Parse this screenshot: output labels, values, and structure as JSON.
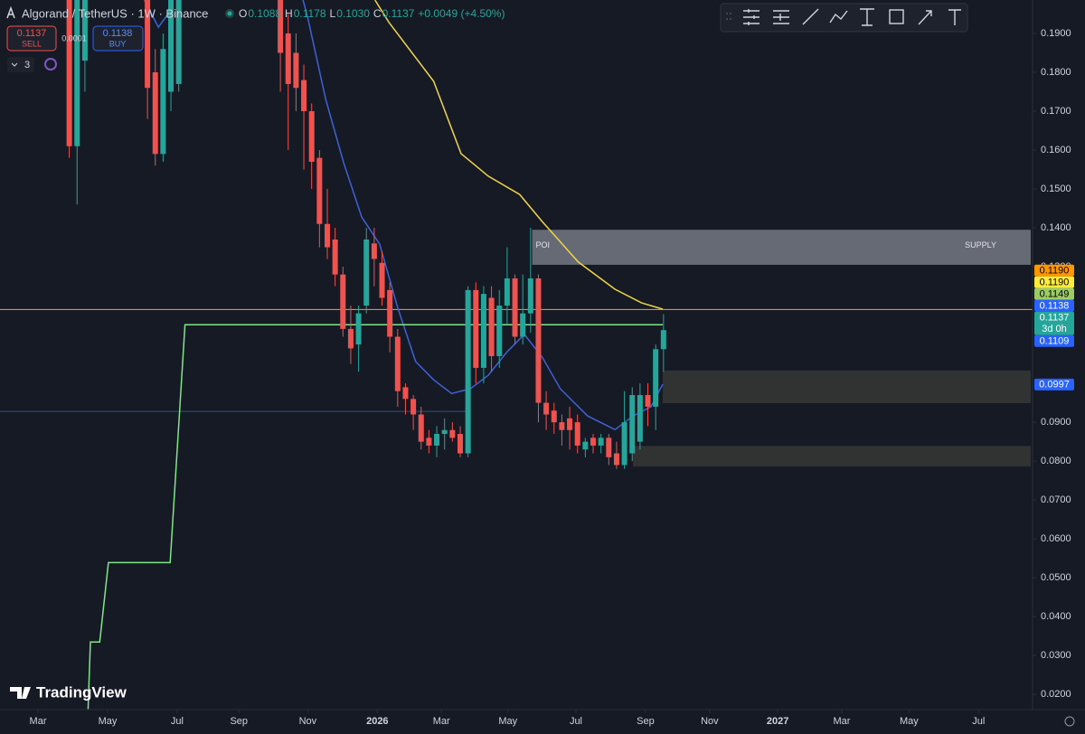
{
  "header": {
    "symbol": "Algorand / TetherUS · 1W · Binance",
    "ohlc": [
      {
        "key": "O",
        "value": "0.1088"
      },
      {
        "key": "H",
        "value": "0.1178"
      },
      {
        "key": "L",
        "value": "0.1030"
      },
      {
        "key": "C",
        "value": "0.1137"
      }
    ],
    "change": "+0.0049 (+4.50%)",
    "sell_price": "0.1137",
    "sell": "SELL",
    "spread": "0.0001",
    "buy_price": "0.1138",
    "buy": "BUY",
    "indicators": "3",
    "watermark": "TradingView"
  },
  "chart_data": {
    "type": "candlestick",
    "xlim": [
      -4.86,
      127.2
    ],
    "ylim": [
      0.0161,
      0.1986
    ],
    "xticks": [
      {
        "value": 0,
        "label": "Mar"
      },
      {
        "value": 8.9,
        "label": "May"
      },
      {
        "value": 17.8,
        "label": "Jul"
      },
      {
        "value": 25.7,
        "label": "Sep"
      },
      {
        "value": 34.5,
        "label": "Nov"
      },
      {
        "value": 43.4,
        "label": "2026"
      },
      {
        "value": 51.6,
        "label": "Mar"
      },
      {
        "value": 60.1,
        "label": "May"
      },
      {
        "value": 68.8,
        "label": "Jul"
      },
      {
        "value": 77.7,
        "label": "Sep"
      },
      {
        "value": 85.9,
        "label": "Nov"
      },
      {
        "value": 94.6,
        "label": "2027"
      },
      {
        "value": 102.8,
        "label": "Mar"
      },
      {
        "value": 111.4,
        "label": "May"
      },
      {
        "value": 120.3,
        "label": "Jul"
      }
    ],
    "yticks": [
      {
        "value": 0.19,
        "label": "0.1900"
      },
      {
        "value": 0.18,
        "label": "0.1800"
      },
      {
        "value": 0.17,
        "label": "0.1700"
      },
      {
        "value": 0.16,
        "label": "0.1600"
      },
      {
        "value": 0.15,
        "label": "0.1500"
      },
      {
        "value": 0.14,
        "label": "0.1400"
      },
      {
        "value": 0.13,
        "label": "0.1300"
      },
      {
        "value": 0.09,
        "label": "0.0900"
      },
      {
        "value": 0.08,
        "label": "0.0800"
      },
      {
        "value": 0.07,
        "label": "0.0700"
      },
      {
        "value": 0.06,
        "label": "0.0600"
      },
      {
        "value": 0.05,
        "label": "0.0500"
      },
      {
        "value": 0.04,
        "label": "0.0400"
      },
      {
        "value": 0.03,
        "label": "0.0300"
      },
      {
        "value": 0.02,
        "label": "0.0200"
      }
    ],
    "up_color": "#26a69a",
    "down_color": "#ef5350",
    "candles": {
      "x": [
        4,
        5,
        6,
        14,
        15,
        16,
        17,
        18,
        31,
        32,
        33,
        34,
        35,
        36,
        37,
        38,
        39,
        40,
        41,
        42,
        43,
        44,
        45,
        46,
        47,
        48,
        49,
        50,
        51,
        52,
        53,
        54,
        55,
        56,
        57,
        58,
        59,
        60,
        61,
        62,
        63,
        64,
        65,
        66,
        67,
        68,
        69,
        70,
        71,
        72,
        73,
        74,
        75,
        76,
        77,
        78,
        79,
        80
      ],
      "open": [
        0.215,
        0.161,
        0.183,
        0.21,
        0.18,
        0.159,
        0.175,
        0.177,
        0.205,
        0.19,
        0.185,
        0.178,
        0.17,
        0.158,
        0.141,
        0.137,
        0.128,
        0.114,
        0.11,
        0.12,
        0.136,
        0.131,
        0.124,
        0.112,
        0.099,
        0.096,
        0.092,
        0.086,
        0.084,
        0.087,
        0.088,
        0.087,
        0.082,
        0.124,
        0.104,
        0.122,
        0.107,
        0.12,
        0.127,
        0.112,
        0.118,
        0.127,
        0.095,
        0.093,
        0.09,
        0.091,
        0.09,
        0.083,
        0.086,
        0.084,
        0.086,
        0.082,
        0.079,
        0.082,
        0.085,
        0.097,
        0.094,
        0.1088
      ],
      "high": [
        0.222,
        0.215,
        0.215,
        0.215,
        0.186,
        0.19,
        0.2,
        0.205,
        0.215,
        0.195,
        0.19,
        0.182,
        0.172,
        0.16,
        0.15,
        0.14,
        0.13,
        0.12,
        0.12,
        0.14,
        0.14,
        0.134,
        0.126,
        0.114,
        0.1,
        0.097,
        0.094,
        0.088,
        0.089,
        0.091,
        0.09,
        0.089,
        0.125,
        0.126,
        0.125,
        0.125,
        0.124,
        0.135,
        0.128,
        0.128,
        0.14,
        0.128,
        0.098,
        0.095,
        0.092,
        0.094,
        0.092,
        0.086,
        0.087,
        0.087,
        0.087,
        0.085,
        0.098,
        0.099,
        0.1,
        0.1,
        0.11,
        0.1178
      ],
      "low": [
        0.158,
        0.146,
        0.175,
        0.168,
        0.156,
        0.157,
        0.17,
        0.175,
        0.175,
        0.16,
        0.17,
        0.155,
        0.15,
        0.135,
        0.132,
        0.125,
        0.112,
        0.105,
        0.103,
        0.118,
        0.125,
        0.12,
        0.108,
        0.094,
        0.092,
        0.088,
        0.083,
        0.082,
        0.081,
        0.083,
        0.085,
        0.081,
        0.081,
        0.1,
        0.1,
        0.103,
        0.104,
        0.115,
        0.11,
        0.11,
        0.113,
        0.09,
        0.088,
        0.087,
        0.084,
        0.083,
        0.082,
        0.081,
        0.082,
        0.082,
        0.079,
        0.078,
        0.078,
        0.08,
        0.083,
        0.089,
        0.088,
        0.103
      ],
      "close": [
        0.161,
        0.21,
        0.21,
        0.176,
        0.159,
        0.186,
        0.2,
        0.205,
        0.185,
        0.177,
        0.176,
        0.17,
        0.157,
        0.141,
        0.135,
        0.128,
        0.114,
        0.109,
        0.118,
        0.137,
        0.132,
        0.122,
        0.112,
        0.098,
        0.096,
        0.092,
        0.085,
        0.084,
        0.087,
        0.088,
        0.086,
        0.082,
        0.124,
        0.104,
        0.123,
        0.107,
        0.12,
        0.127,
        0.112,
        0.118,
        0.127,
        0.095,
        0.092,
        0.09,
        0.088,
        0.088,
        0.084,
        0.085,
        0.084,
        0.086,
        0.081,
        0.079,
        0.09,
        0.097,
        0.097,
        0.094,
        0.1088,
        0.1137
      ]
    },
    "lines": [
      {
        "color": "#f0d54a",
        "x": [
          43.1,
          44.9,
          50.6,
          54.1,
          57.6,
          61.6,
          64.5,
          69.1,
          73.8,
          77.2,
          79.9
        ],
        "values": [
          0.1986,
          0.1928,
          0.1777,
          0.1591,
          0.1533,
          0.1486,
          0.1416,
          0.1312,
          0.1242,
          0.1207,
          0.1191
        ]
      },
      {
        "color": "#3f62d6",
        "x": [
          13.6,
          15.4,
          17.1,
          null,
          33.9,
          34.5,
          36.8,
          39.1,
          41.4,
          43.7,
          46,
          48.3,
          50.6,
          52.9,
          55.3,
          57.6,
          59.9,
          62.2,
          64.5,
          66.8,
          70.3,
          73.8,
          76.1,
          78.4,
          79.9
        ],
        "values": [
          0.1986,
          0.1916,
          0.1963,
          null,
          0.1986,
          0.194,
          0.173,
          0.1567,
          0.1428,
          0.1358,
          0.1195,
          0.1056,
          0.1009,
          0.0974,
          0.0986,
          0.1021,
          0.1079,
          0.1126,
          0.1067,
          0.0986,
          0.0916,
          0.0881,
          0.0916,
          0.094,
          0.0998
        ]
      },
      {
        "color": "#7ee787",
        "x": [
          6.4,
          6.7,
          7.9,
          9.0,
          16.9,
          18.8,
          79.9
        ],
        "values": [
          0.0161,
          0.0335,
          0.0335,
          0.0539,
          0.0539,
          0.1151,
          0.1151
        ]
      }
    ],
    "hlines": [
      {
        "value": 0.119,
        "color": "#e8a33a"
      },
      {
        "value": 0.0928,
        "color": "#2f4f7a",
        "x_end": 55
      }
    ],
    "zones": [
      {
        "x_start": 63.2,
        "low": 0.1305,
        "high": 0.1395,
        "color": "rgba(200,205,215,0.45)",
        "label_left": "POI",
        "label_right": "SUPPLY"
      },
      {
        "x_start": 79.9,
        "low": 0.0949,
        "high": 0.1033,
        "color": "rgba(90,90,70,0.4)"
      },
      {
        "x_start": 76.1,
        "low": 0.0786,
        "high": 0.0839,
        "color": "rgba(90,90,70,0.4)"
      }
    ],
    "price_tags": [
      {
        "value": 0.119,
        "label": "0.1190",
        "color": "#ff9800",
        "text": "#000"
      },
      {
        "value": 0.119,
        "label": "0.1190",
        "color": "#ffeb3b",
        "text": "#000"
      },
      {
        "value": 0.1149,
        "label": "0.1149",
        "color": "#9ccc65",
        "text": "#000"
      },
      {
        "value": 0.1138,
        "label": "0.1138",
        "color": "#2962ff",
        "text": "#fff"
      },
      {
        "value": 0.1137,
        "label": "0.1137",
        "sub": "3d 0h",
        "color": "#26a69a",
        "text": "#fff"
      },
      {
        "value": 0.1109,
        "label": "0.1109",
        "color": "#2962ff",
        "text": "#fff"
      },
      {
        "value": 0.0997,
        "label": "0.0997",
        "color": "#2962ff",
        "text": "#fff"
      }
    ]
  }
}
